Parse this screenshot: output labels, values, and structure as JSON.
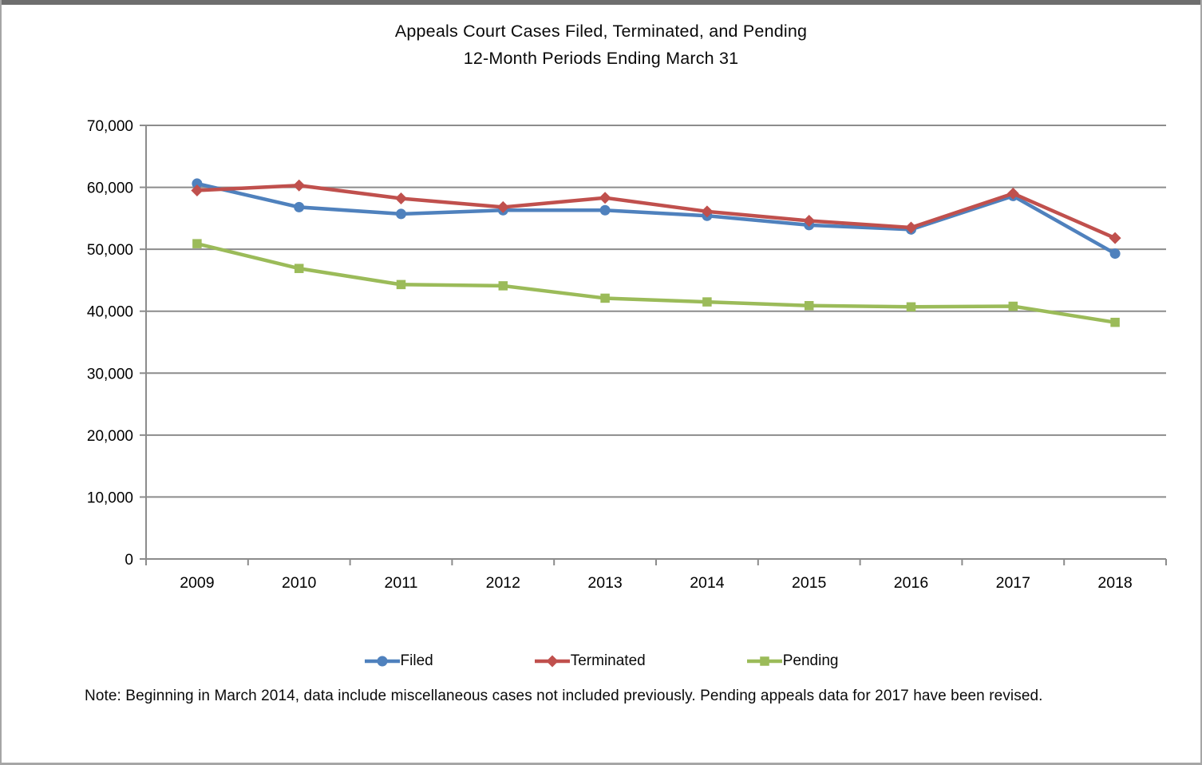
{
  "title": {
    "line1": "Appeals Court Cases Filed, Terminated, and Pending",
    "line2": "12-Month Periods Ending March 31"
  },
  "note": "Note: Beginning in March 2014, data include miscellaneous cases not included previously. Pending appeals data for 2017 have been revised.",
  "chart_data": {
    "type": "line",
    "categories": [
      "2009",
      "2010",
      "2011",
      "2012",
      "2013",
      "2014",
      "2015",
      "2016",
      "2017",
      "2018"
    ],
    "series": [
      {
        "name": "Filed",
        "marker": "circle",
        "color": "#4F81BD",
        "values": [
          60600,
          56800,
          55700,
          56300,
          56300,
          55400,
          53900,
          53200,
          58600,
          49300
        ]
      },
      {
        "name": "Terminated",
        "marker": "diamond",
        "color": "#C0504D",
        "values": [
          59500,
          60300,
          58200,
          56800,
          58300,
          56100,
          54600,
          53500,
          59000,
          51800
        ]
      },
      {
        "name": "Pending",
        "marker": "square",
        "color": "#9BBB59",
        "values": [
          50900,
          46900,
          44300,
          44100,
          42100,
          41500,
          40900,
          40700,
          40800,
          38200
        ]
      }
    ],
    "ylim": [
      0,
      70000
    ],
    "ytick_step": 10000,
    "ytick_labels": [
      "0",
      "10,000",
      "20,000",
      "30,000",
      "40,000",
      "50,000",
      "60,000",
      "70,000"
    ],
    "grid": true,
    "grid_color": "#8C8C8C",
    "axis_color": "#8C8C8C",
    "text_color": "#000000",
    "legend_position": "bottom",
    "xlabel": "",
    "ylabel": ""
  }
}
